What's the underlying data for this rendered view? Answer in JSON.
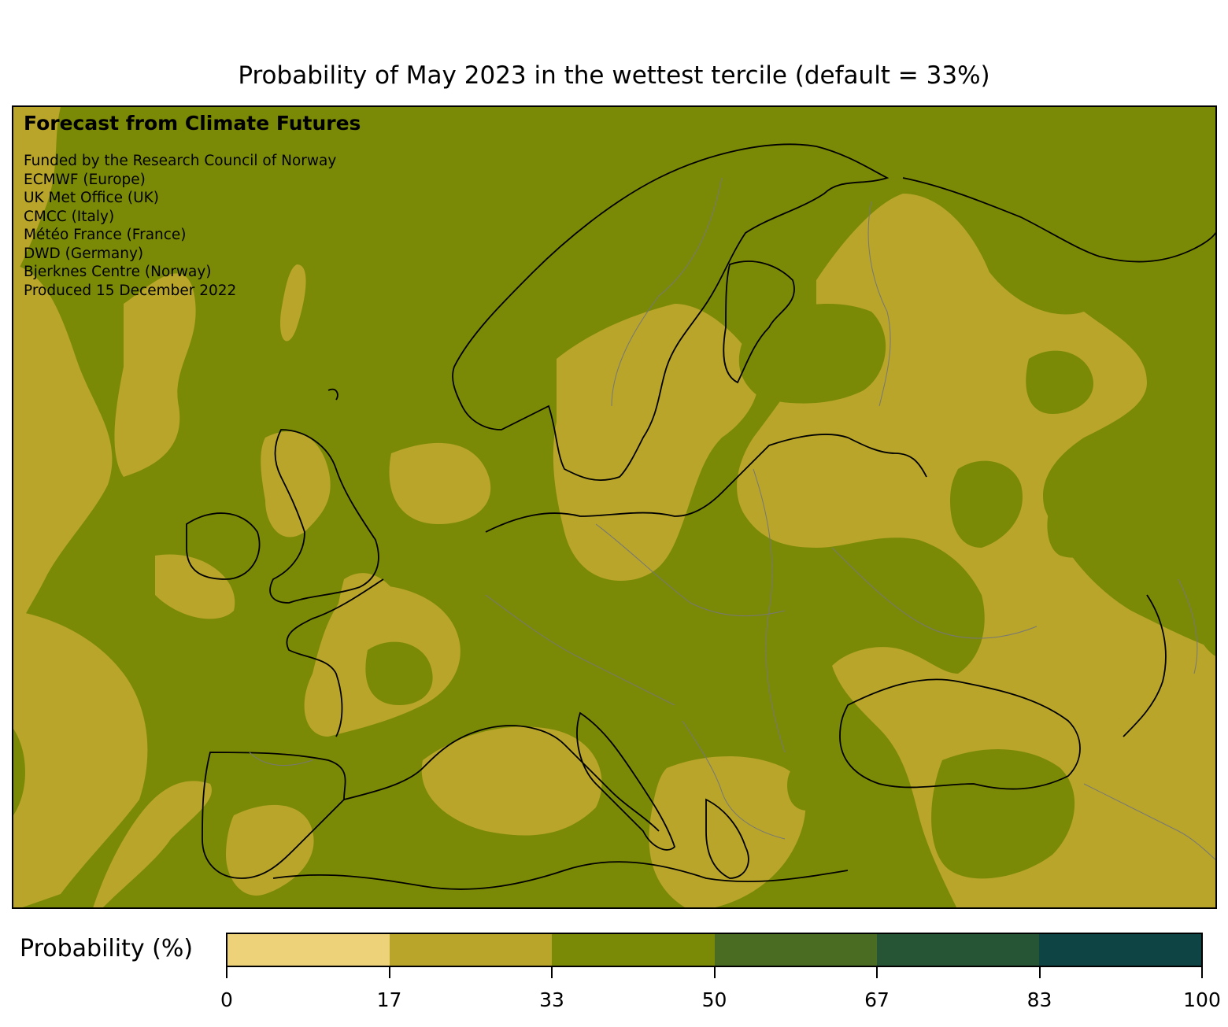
{
  "title": "Probability of May 2023 in the wettest tercile (default = 33%)",
  "overlay": {
    "heading": "Forecast from Climate Futures",
    "credits": [
      "Funded by the Research Council of Norway",
      "ECMWF (Europe)",
      "UK Met Office (UK)",
      "CMCC (Italy)",
      "Météo France (France)",
      "DWD (Germany)",
      "Bjerknes Centre (Norway)",
      "Produced 15 December 2022"
    ]
  },
  "colorbar": {
    "label": "Probability (%)",
    "bins": [
      {
        "from": 0,
        "to": 17,
        "color": "#eed27a"
      },
      {
        "from": 17,
        "to": 33,
        "color": "#b8a52a"
      },
      {
        "from": 33,
        "to": 50,
        "color": "#7b8a06"
      },
      {
        "from": 50,
        "to": 67,
        "color": "#4a6b22"
      },
      {
        "from": 67,
        "to": 83,
        "color": "#255535"
      },
      {
        "from": 83,
        "to": 100,
        "color": "#0e4443"
      }
    ],
    "ticks": [
      "0",
      "17",
      "33",
      "50",
      "67",
      "83",
      "100"
    ]
  },
  "map": {
    "region": "Europe",
    "background_class_color": "#7b8a06",
    "patch_class_color": "#b8a52a"
  }
}
